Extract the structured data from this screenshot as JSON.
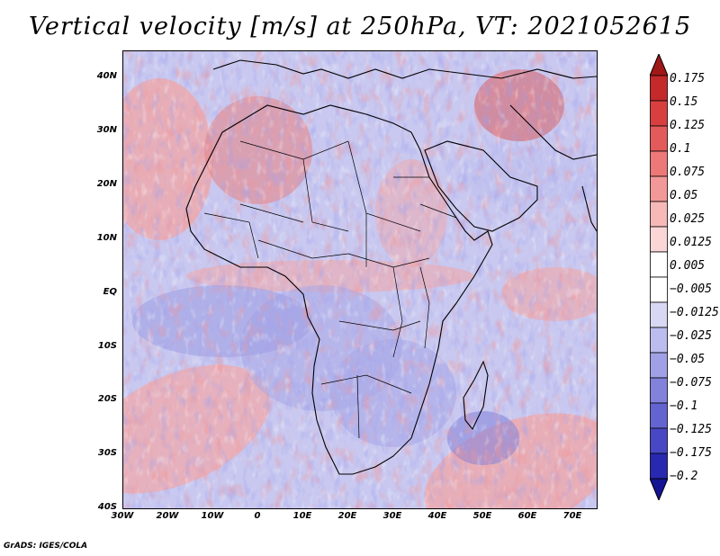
{
  "title": "Vertical velocity [m/s] at 250hPa, VT: 2021052615",
  "footer": "GrADS: IGES/COLA",
  "map": {
    "lat_labels": [
      "40N",
      "30N",
      "20N",
      "10N",
      "EQ",
      "10S",
      "20S",
      "30S",
      "40S"
    ],
    "lon_labels": [
      "30W",
      "20W",
      "10W",
      "0",
      "10E",
      "20E",
      "30E",
      "40E",
      "50E",
      "60E",
      "70E"
    ]
  },
  "colorbar": {
    "labels": [
      "0.175",
      "0.15",
      "0.125",
      "0.1",
      "0.075",
      "0.05",
      "0.025",
      "0.0125",
      "0.005",
      "−0.005",
      "−0.0125",
      "−0.025",
      "−0.05",
      "−0.075",
      "−0.1",
      "−0.125",
      "−0.175",
      "−0.2"
    ],
    "colors": [
      "#a01818",
      "#c42a2a",
      "#d84040",
      "#e35a5a",
      "#ec7878",
      "#f29898",
      "#f7b8b8",
      "#fbd6d6",
      "#ffffff",
      "#ffffff",
      "#d8d8f4",
      "#bcbcee",
      "#a0a0e6",
      "#8282dc",
      "#6464d0",
      "#4848c4",
      "#2828b0",
      "#141494"
    ]
  }
}
